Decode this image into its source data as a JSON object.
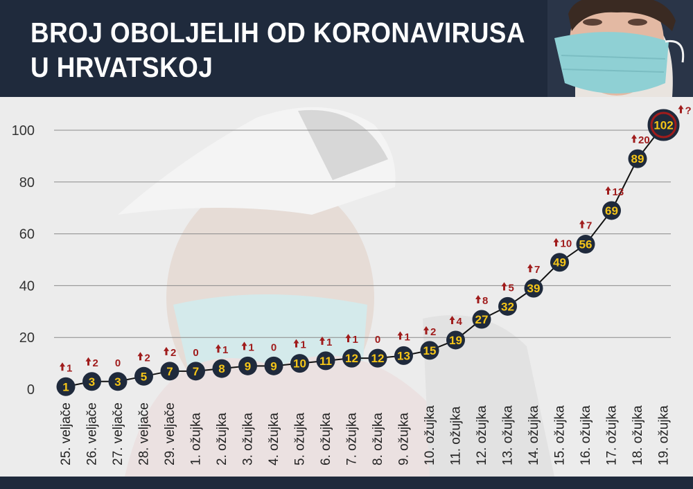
{
  "header": {
    "title_line1": "BROJ OBOLJELIH OD KORONAVIRUSA",
    "title_line2": "U HRVATSKOJ"
  },
  "colors": {
    "header_bg": "#1f2a3c",
    "marker_fill": "#1f2a3c",
    "value_text": "#f5c518",
    "increase_text": "#a01c1c",
    "last_marker_fill": "#a01c1c"
  },
  "chart_data": {
    "type": "line",
    "title": "BROJ OBOLJELIH OD KORONAVIRUSA U HRVATSKOJ",
    "xlabel": "",
    "ylabel": "",
    "ylim": [
      0,
      100
    ],
    "yticks": [
      0,
      20,
      40,
      60,
      80,
      100
    ],
    "grid": true,
    "x": [
      "25. veljače",
      "26. veljače",
      "27. veljače",
      "28. veljače",
      "29. veljače",
      "1. ožujka",
      "2. ožujka",
      "3. ožujka",
      "4. ožujka",
      "5. ožujka",
      "6. ožujka",
      "7. ožujka",
      "8. ožujka",
      "9. ožujka",
      "10. ožujka",
      "11. ožujka",
      "12. ožujka",
      "13. ožujka",
      "14. ožujka",
      "15. ožujka",
      "16. ožujka",
      "17. ožujka",
      "18. ožujka",
      "19. ožujka"
    ],
    "values": [
      1,
      3,
      3,
      5,
      7,
      7,
      8,
      9,
      9,
      10,
      11,
      12,
      12,
      13,
      15,
      19,
      27,
      32,
      39,
      49,
      56,
      69,
      89,
      102
    ],
    "increases": [
      "1",
      "2",
      "0",
      "2",
      "2",
      "0",
      "1",
      "1",
      "0",
      "1",
      "1",
      "1",
      "0",
      "1",
      "2",
      "4",
      "8",
      "5",
      "7",
      "10",
      "7",
      "13",
      "20",
      "?"
    ]
  }
}
